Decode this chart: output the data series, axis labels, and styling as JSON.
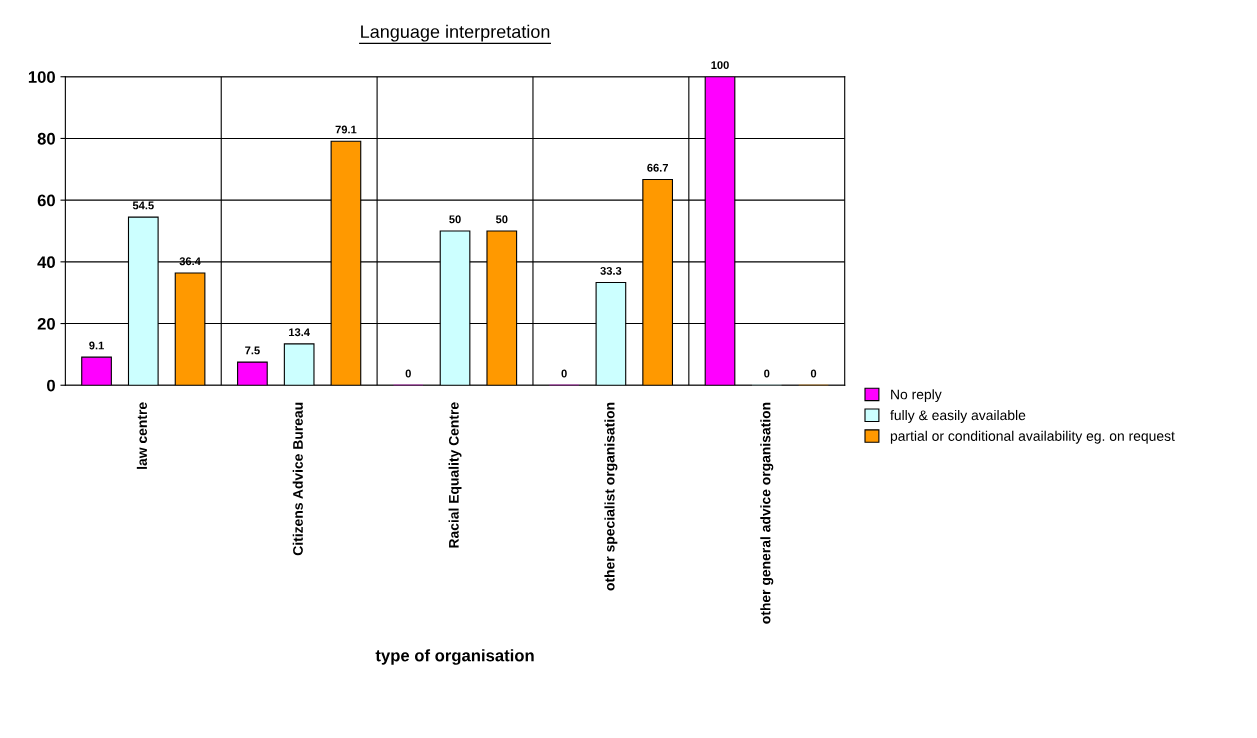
{
  "chart_data": {
    "type": "bar",
    "title": "Language interpretation",
    "xlabel": "type of organisation",
    "categories": [
      "law centre",
      "Citizens Advice Bureau",
      "Racial Equality Centre",
      "other specialist organisation",
      "other general advice organisation"
    ],
    "series": [
      {
        "name": "No reply",
        "color": "#ff00ff",
        "values": [
          9.1,
          7.5,
          0,
          0,
          100
        ]
      },
      {
        "name": "fully & easily available",
        "color": "#ccffff",
        "values": [
          54.5,
          13.4,
          50,
          33.3,
          0
        ]
      },
      {
        "name": "partial or conditional availability eg. on request",
        "color": "#ff9900",
        "values": [
          36.4,
          79.1,
          50,
          66.7,
          0
        ]
      }
    ],
    "ylim": [
      0,
      100
    ],
    "yticks": [
      0,
      20,
      40,
      60,
      80,
      100
    ],
    "grid": true,
    "legend": "right",
    "data_labels": true
  }
}
